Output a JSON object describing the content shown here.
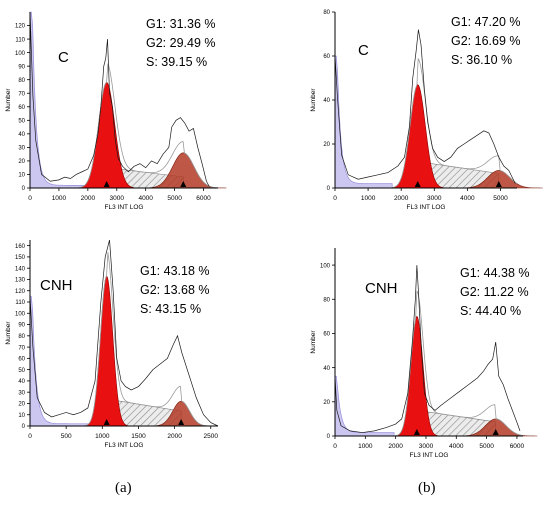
{
  "captions": [
    "(a)",
    "(b)"
  ],
  "chart_data": [
    {
      "type": "area",
      "panel_caption": "(a)",
      "sample_label": "C",
      "stats": [
        "G1: 31.36 %",
        "G2: 29.49 %",
        "S: 39.15 %"
      ],
      "xlabel": "FL3 INT LOG",
      "ylabel": "Number",
      "xlim": [
        0,
        6500
      ],
      "ylim": [
        0,
        130
      ],
      "x_ticks": [
        0,
        1000,
        2000,
        3000,
        4000,
        5000,
        6000
      ],
      "y_ticks": [
        0,
        10,
        20,
        30,
        40,
        50,
        60,
        70,
        80,
        90,
        100,
        110,
        120
      ],
      "g1": {
        "mean": 2650,
        "sd": 280,
        "height": 78
      },
      "g2": {
        "mean": 5300,
        "sd": 370,
        "height": 26
      },
      "s_phase": {
        "from": 2650,
        "to": 5300,
        "height": 15
      },
      "debris": {
        "start": 80,
        "height": 130
      },
      "histogram": [
        [
          0,
          130
        ],
        [
          100,
          68
        ],
        [
          200,
          35
        ],
        [
          400,
          10
        ],
        [
          700,
          5
        ],
        [
          1000,
          6
        ],
        [
          1200,
          8
        ],
        [
          1400,
          7
        ],
        [
          1600,
          10
        ],
        [
          1800,
          12
        ],
        [
          2000,
          14
        ],
        [
          2200,
          24
        ],
        [
          2350,
          40
        ],
        [
          2450,
          60
        ],
        [
          2550,
          90
        ],
        [
          2620,
          96
        ],
        [
          2680,
          110
        ],
        [
          2750,
          70
        ],
        [
          2850,
          60
        ],
        [
          2950,
          35
        ],
        [
          3050,
          22
        ],
        [
          3200,
          16
        ],
        [
          3400,
          12
        ],
        [
          3600,
          16
        ],
        [
          3800,
          18
        ],
        [
          4000,
          15
        ],
        [
          4200,
          20
        ],
        [
          4400,
          18
        ],
        [
          4600,
          25
        ],
        [
          4800,
          30
        ],
        [
          4900,
          45
        ],
        [
          5050,
          50
        ],
        [
          5200,
          52
        ],
        [
          5350,
          48
        ],
        [
          5500,
          42
        ],
        [
          5650,
          44
        ],
        [
          5800,
          30
        ],
        [
          5950,
          18
        ],
        [
          6100,
          5
        ],
        [
          6200,
          1
        ]
      ]
    },
    {
      "type": "area",
      "panel_caption": "(b)",
      "sample_label": "C",
      "stats": [
        "G1: 47.20 %",
        "G2: 16.69 %",
        "S: 36.10 %"
      ],
      "xlabel": "FL3 INT LOG",
      "ylabel": "Number",
      "xlim": [
        0,
        5500
      ],
      "ylim": [
        0,
        80
      ],
      "x_ticks": [
        0,
        1000,
        2000,
        3000,
        4000,
        5000
      ],
      "y_ticks": [
        0,
        20,
        40,
        60,
        80
      ],
      "g1": {
        "mean": 2500,
        "sd": 230,
        "height": 47
      },
      "g2": {
        "mean": 4950,
        "sd": 330,
        "height": 8
      },
      "s_phase": {
        "from": 2500,
        "to": 4950,
        "height": 12
      },
      "debris": {
        "start": 60,
        "height": 60
      },
      "histogram": [
        [
          0,
          60
        ],
        [
          80,
          40
        ],
        [
          200,
          15
        ],
        [
          400,
          6
        ],
        [
          700,
          4
        ],
        [
          1000,
          5
        ],
        [
          1300,
          6
        ],
        [
          1600,
          7
        ],
        [
          1900,
          10
        ],
        [
          2100,
          14
        ],
        [
          2250,
          28
        ],
        [
          2350,
          50
        ],
        [
          2450,
          62
        ],
        [
          2520,
          72
        ],
        [
          2600,
          65
        ],
        [
          2700,
          45
        ],
        [
          2800,
          30
        ],
        [
          2950,
          18
        ],
        [
          3100,
          14
        ],
        [
          3300,
          12
        ],
        [
          3500,
          14
        ],
        [
          3700,
          18
        ],
        [
          3900,
          20
        ],
        [
          4100,
          22
        ],
        [
          4300,
          24
        ],
        [
          4500,
          26
        ],
        [
          4650,
          25
        ],
        [
          4800,
          20
        ],
        [
          4950,
          14
        ],
        [
          5100,
          10
        ],
        [
          5250,
          8
        ],
        [
          5350,
          5
        ],
        [
          5450,
          2
        ]
      ]
    },
    {
      "type": "area",
      "panel_caption": "(a)",
      "sample_label": "CNH",
      "stats": [
        "G1: 43.18 %",
        "G2: 13.68 %",
        "S: 43.15 %"
      ],
      "xlabel": "FL3 INT LOG",
      "ylabel": "Number",
      "xlim": [
        0,
        2600
      ],
      "ylim": [
        0,
        165
      ],
      "x_ticks": [
        0,
        500,
        1000,
        1500,
        2000,
        2500
      ],
      "y_ticks": [
        0,
        10,
        20,
        30,
        40,
        50,
        60,
        70,
        80,
        90,
        100,
        110,
        120,
        130,
        140,
        150,
        160
      ],
      "g1": {
        "mean": 1060,
        "sd": 85,
        "height": 133
      },
      "g2": {
        "mean": 2090,
        "sd": 115,
        "height": 22
      },
      "s_phase": {
        "from": 1060,
        "to": 2090,
        "height": 24
      },
      "debris": {
        "start": 30,
        "height": 115
      },
      "histogram": [
        [
          0,
          115
        ],
        [
          40,
          70
        ],
        [
          100,
          25
        ],
        [
          200,
          12
        ],
        [
          300,
          8
        ],
        [
          400,
          10
        ],
        [
          500,
          12
        ],
        [
          600,
          10
        ],
        [
          700,
          12
        ],
        [
          800,
          16
        ],
        [
          900,
          40
        ],
        [
          980,
          110
        ],
        [
          1040,
          150
        ],
        [
          1100,
          165
        ],
        [
          1150,
          120
        ],
        [
          1200,
          60
        ],
        [
          1260,
          40
        ],
        [
          1320,
          35
        ],
        [
          1400,
          32
        ],
        [
          1500,
          35
        ],
        [
          1600,
          42
        ],
        [
          1700,
          50
        ],
        [
          1800,
          55
        ],
        [
          1900,
          60
        ],
        [
          1980,
          72
        ],
        [
          2040,
          80
        ],
        [
          2100,
          65
        ],
        [
          2200,
          45
        ],
        [
          2300,
          25
        ],
        [
          2400,
          10
        ],
        [
          2500,
          3
        ],
        [
          2600,
          0
        ]
      ]
    },
    {
      "type": "area",
      "panel_caption": "(b)",
      "sample_label": "CNH",
      "stats": [
        "G1: 44.38 %",
        "G2: 11.22 %",
        "S: 44.40 %"
      ],
      "xlabel": "FL3 INT LOG",
      "ylabel": "Number",
      "xlim": [
        0,
        6200
      ],
      "ylim": [
        0,
        110
      ],
      "x_ticks": [
        0,
        1000,
        2000,
        3000,
        4000,
        5000,
        6000
      ],
      "y_ticks": [
        0,
        20,
        40,
        60,
        80,
        100
      ],
      "g1": {
        "mean": 2700,
        "sd": 200,
        "height": 70
      },
      "g2": {
        "mean": 5300,
        "sd": 340,
        "height": 10
      },
      "s_phase": {
        "from": 2700,
        "to": 5300,
        "height": 15
      },
      "debris": {
        "start": 50,
        "height": 35
      },
      "histogram": [
        [
          0,
          35
        ],
        [
          60,
          15
        ],
        [
          200,
          6
        ],
        [
          500,
          3
        ],
        [
          900,
          2
        ],
        [
          1300,
          3
        ],
        [
          1700,
          5
        ],
        [
          2000,
          7
        ],
        [
          2200,
          10
        ],
        [
          2400,
          25
        ],
        [
          2550,
          55
        ],
        [
          2650,
          80
        ],
        [
          2700,
          100
        ],
        [
          2750,
          85
        ],
        [
          2850,
          50
        ],
        [
          2950,
          25
        ],
        [
          3100,
          18
        ],
        [
          3300,
          15
        ],
        [
          3500,
          18
        ],
        [
          3800,
          22
        ],
        [
          4100,
          26
        ],
        [
          4400,
          30
        ],
        [
          4700,
          34
        ],
        [
          4900,
          38
        ],
        [
          5050,
          42
        ],
        [
          5200,
          45
        ],
        [
          5300,
          55
        ],
        [
          5400,
          35
        ],
        [
          5550,
          30
        ],
        [
          5700,
          22
        ],
        [
          5850,
          15
        ],
        [
          6000,
          8
        ],
        [
          6100,
          3
        ]
      ]
    }
  ]
}
